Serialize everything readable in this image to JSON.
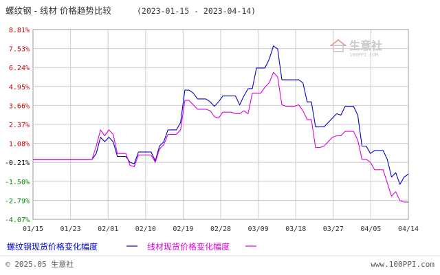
{
  "header": {
    "title": "螺纹钢 - 线材 价格趋势比较",
    "date_range": "(2023-01-15 - 2023-04-14)"
  },
  "watermark": {
    "brand": "生意社",
    "url": "100PPI.COM"
  },
  "footer": {
    "left": "© 2025.05 生意社",
    "right": "www.100PPI.com"
  },
  "colors": {
    "series1": "#0000cc",
    "series2": "#dd00dd",
    "grid": "#cccccc",
    "frame": "#999999"
  },
  "chart_data": {
    "type": "line",
    "title": "螺纹钢 - 线材 价格趋势比较",
    "y_ticks": [
      "8.81%",
      "7.53%",
      "6.24%",
      "4.95%",
      "3.66%",
      "2.37%",
      "1.08%",
      "-0.21%",
      "-1.50%",
      "-2.79%",
      "-4.07%"
    ],
    "ylim": [
      -4.07,
      8.81
    ],
    "x_ticks": [
      "01/15",
      "01/23",
      "02/01",
      "02/10",
      "02/19",
      "02/28",
      "03/09",
      "03/18",
      "03/27",
      "04/05",
      "04/14"
    ],
    "x_range_days": [
      0,
      89
    ],
    "grid": true,
    "legend_position": "bottom",
    "series": [
      {
        "name": "螺纹钢现货价格变化幅度",
        "color": "#0000cc",
        "points": [
          [
            0,
            0
          ],
          [
            14,
            0
          ],
          [
            15,
            0.4
          ],
          [
            16,
            1.5
          ],
          [
            17,
            1.2
          ],
          [
            18,
            1.5
          ],
          [
            19,
            1.2
          ],
          [
            20,
            0.2
          ],
          [
            21,
            0.2
          ],
          [
            22,
            0.2
          ],
          [
            23,
            -0.2
          ],
          [
            24,
            -0.3
          ],
          [
            25,
            0.5
          ],
          [
            26,
            0.5
          ],
          [
            27,
            0.5
          ],
          [
            28,
            0.5
          ],
          [
            29,
            -0.1
          ],
          [
            30,
            0.9
          ],
          [
            31,
            1.2
          ],
          [
            32,
            2.0
          ],
          [
            33,
            2.0
          ],
          [
            34,
            2.0
          ],
          [
            35,
            2.5
          ],
          [
            36,
            4.7
          ],
          [
            37,
            4.7
          ],
          [
            38,
            4.5
          ],
          [
            39,
            4.1
          ],
          [
            40,
            4.1
          ],
          [
            41,
            4.1
          ],
          [
            42,
            3.9
          ],
          [
            43,
            3.6
          ],
          [
            44,
            3.9
          ],
          [
            45,
            4.3
          ],
          [
            46,
            4.3
          ],
          [
            47,
            4.3
          ],
          [
            48,
            4.3
          ],
          [
            49,
            3.7
          ],
          [
            50,
            4.3
          ],
          [
            51,
            4.8
          ],
          [
            52,
            4.8
          ],
          [
            53,
            6.2
          ],
          [
            54,
            6.2
          ],
          [
            55,
            6.2
          ],
          [
            56,
            6.8
          ],
          [
            57,
            7.7
          ],
          [
            58,
            7.5
          ],
          [
            59,
            5.4
          ],
          [
            60,
            5.4
          ],
          [
            61,
            5.4
          ],
          [
            62,
            5.4
          ],
          [
            63,
            5.4
          ],
          [
            64,
            5.2
          ],
          [
            65,
            3.9
          ],
          [
            66,
            3.9
          ],
          [
            67,
            2.2
          ],
          [
            68,
            2.2
          ],
          [
            69,
            2.2
          ],
          [
            70,
            2.5
          ],
          [
            71,
            2.8
          ],
          [
            72,
            3.1
          ],
          [
            73,
            3.0
          ],
          [
            74,
            3.6
          ],
          [
            75,
            3.6
          ],
          [
            76,
            3.6
          ],
          [
            77,
            3.0
          ],
          [
            78,
            0.9
          ],
          [
            79,
            0.9
          ],
          [
            80,
            0.4
          ],
          [
            81,
            0.6
          ],
          [
            82,
            0.6
          ],
          [
            83,
            0.6
          ],
          [
            84,
            0.0
          ],
          [
            85,
            -1.2
          ],
          [
            86,
            -0.9
          ],
          [
            87,
            -1.7
          ],
          [
            88,
            -1.2
          ],
          [
            89,
            -1.0
          ]
        ]
      },
      {
        "name": "线材现货价格变化幅度",
        "color": "#dd00dd",
        "points": [
          [
            0,
            0
          ],
          [
            14,
            0
          ],
          [
            15,
            0.9
          ],
          [
            16,
            2.0
          ],
          [
            17,
            1.6
          ],
          [
            18,
            2.0
          ],
          [
            19,
            1.7
          ],
          [
            20,
            0.4
          ],
          [
            21,
            0.4
          ],
          [
            22,
            0.4
          ],
          [
            23,
            -0.4
          ],
          [
            24,
            -0.5
          ],
          [
            25,
            0.3
          ],
          [
            26,
            0.3
          ],
          [
            27,
            0.3
          ],
          [
            28,
            0.3
          ],
          [
            29,
            -0.2
          ],
          [
            30,
            0.7
          ],
          [
            31,
            1.0
          ],
          [
            32,
            1.7
          ],
          [
            33,
            1.7
          ],
          [
            34,
            1.7
          ],
          [
            35,
            2.0
          ],
          [
            36,
            4.0
          ],
          [
            37,
            4.0
          ],
          [
            38,
            3.7
          ],
          [
            39,
            3.4
          ],
          [
            40,
            3.4
          ],
          [
            41,
            3.4
          ],
          [
            42,
            3.3
          ],
          [
            43,
            2.9
          ],
          [
            44,
            2.8
          ],
          [
            45,
            3.2
          ],
          [
            46,
            3.2
          ],
          [
            47,
            3.2
          ],
          [
            48,
            3.1
          ],
          [
            49,
            3.1
          ],
          [
            50,
            3.3
          ],
          [
            51,
            3.1
          ],
          [
            52,
            4.5
          ],
          [
            53,
            4.5
          ],
          [
            54,
            4.5
          ],
          [
            55,
            4.9
          ],
          [
            56,
            5.2
          ],
          [
            57,
            5.9
          ],
          [
            58,
            5.6
          ],
          [
            59,
            3.7
          ],
          [
            60,
            3.6
          ],
          [
            61,
            3.6
          ],
          [
            62,
            3.6
          ],
          [
            63,
            3.7
          ],
          [
            64,
            3.3
          ],
          [
            65,
            2.7
          ],
          [
            66,
            2.7
          ],
          [
            67,
            0.8
          ],
          [
            68,
            0.8
          ],
          [
            69,
            0.9
          ],
          [
            70,
            1.2
          ],
          [
            71,
            1.5
          ],
          [
            72,
            1.6
          ],
          [
            73,
            1.6
          ],
          [
            74,
            1.9
          ],
          [
            75,
            1.9
          ],
          [
            76,
            1.9
          ],
          [
            77,
            1.3
          ],
          [
            78,
            0.0
          ],
          [
            79,
            0.0
          ],
          [
            80,
            -0.2
          ],
          [
            81,
            -0.7
          ],
          [
            82,
            -0.7
          ],
          [
            83,
            -0.7
          ],
          [
            84,
            -1.6
          ],
          [
            85,
            -2.5
          ],
          [
            86,
            -2.2
          ],
          [
            87,
            -2.8
          ],
          [
            88,
            -2.9
          ],
          [
            89,
            -2.9
          ]
        ]
      }
    ]
  }
}
